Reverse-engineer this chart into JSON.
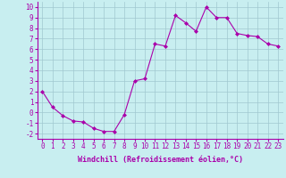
{
  "x": [
    0,
    1,
    2,
    3,
    4,
    5,
    6,
    7,
    8,
    9,
    10,
    11,
    12,
    13,
    14,
    15,
    16,
    17,
    18,
    19,
    20,
    21,
    22,
    23
  ],
  "y": [
    2.0,
    0.5,
    -0.3,
    -0.8,
    -0.9,
    -1.5,
    -1.8,
    -1.8,
    -0.2,
    3.0,
    3.2,
    6.5,
    6.3,
    9.2,
    8.5,
    7.7,
    10.0,
    9.0,
    9.0,
    7.5,
    7.3,
    7.2,
    6.5,
    6.3
  ],
  "line_color": "#aa00aa",
  "marker": "D",
  "marker_size": 2,
  "bg_color": "#c8eef0",
  "grid_color": "#a0c8d0",
  "xlabel": "Windchill (Refroidissement éolien,°C)",
  "xlim": [
    -0.5,
    23.5
  ],
  "ylim": [
    -2.5,
    10.5
  ],
  "yticks": [
    -2,
    -1,
    0,
    1,
    2,
    3,
    4,
    5,
    6,
    7,
    8,
    9,
    10
  ],
  "xticks": [
    0,
    1,
    2,
    3,
    4,
    5,
    6,
    7,
    8,
    9,
    10,
    11,
    12,
    13,
    14,
    15,
    16,
    17,
    18,
    19,
    20,
    21,
    22,
    23
  ],
  "tick_label_color": "#aa00aa",
  "label_fontsize": 6,
  "tick_fontsize": 5.5
}
